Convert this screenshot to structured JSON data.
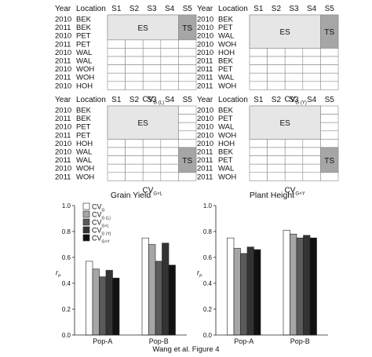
{
  "panels": [
    {
      "cv_main": "CV",
      "cv_sub": "G (L)",
      "year_header": "Year",
      "location_header": "Location",
      "col_headers": [
        "S1",
        "S2",
        "S3",
        "S4",
        "S5"
      ],
      "rows": [
        {
          "year": "2010",
          "location": "BEK"
        },
        {
          "year": "2011",
          "location": "BEK"
        },
        {
          "year": "2010",
          "location": "PET"
        },
        {
          "year": "2011",
          "location": "PET"
        },
        {
          "year": "2010",
          "location": "WAL"
        },
        {
          "year": "2011",
          "location": "WAL"
        },
        {
          "year": "2010",
          "location": "WOH"
        },
        {
          "year": "2011",
          "location": "WOH"
        },
        {
          "year": "2010",
          "location": "HOH"
        }
      ],
      "es": {
        "label": "ES",
        "row_start": 0,
        "row_end": 3,
        "col_start": 0,
        "col_end": 4
      },
      "ts": {
        "label": "TS",
        "row_start": 0,
        "row_end": 3,
        "col_start": 4,
        "col_end": 5
      }
    },
    {
      "cv_main": "CV",
      "cv_sub": "G (Y)",
      "year_header": "Year",
      "location_header": "Location",
      "col_headers": [
        "S1",
        "S2",
        "S3",
        "S4",
        "S5"
      ],
      "rows": [
        {
          "year": "2010",
          "location": "BEK"
        },
        {
          "year": "2010",
          "location": "PET"
        },
        {
          "year": "2010",
          "location": "WAL"
        },
        {
          "year": "2010",
          "location": "WOH"
        },
        {
          "year": "2010",
          "location": "HOH"
        },
        {
          "year": "2011",
          "location": "BEK"
        },
        {
          "year": "2011",
          "location": "PET"
        },
        {
          "year": "2011",
          "location": "WAL"
        },
        {
          "year": "2011",
          "location": "WOH"
        }
      ],
      "es": {
        "label": "ES",
        "row_start": 0,
        "row_end": 4,
        "col_start": 0,
        "col_end": 4
      },
      "ts": {
        "label": "TS",
        "row_start": 0,
        "row_end": 4,
        "col_start": 4,
        "col_end": 5
      }
    },
    {
      "cv_main": "CV",
      "cv_sub": "G×L",
      "year_header": "Year",
      "location_header": "Location",
      "col_headers": [
        "S1",
        "S2",
        "S3",
        "S4",
        "S5"
      ],
      "rows": [
        {
          "year": "2010",
          "location": "BEK"
        },
        {
          "year": "2011",
          "location": "BEK"
        },
        {
          "year": "2010",
          "location": "PET"
        },
        {
          "year": "2011",
          "location": "PET"
        },
        {
          "year": "2010",
          "location": "HOH"
        },
        {
          "year": "2010",
          "location": "WAL"
        },
        {
          "year": "2011",
          "location": "WAL"
        },
        {
          "year": "2010",
          "location": "WOH"
        },
        {
          "year": "2011",
          "location": "WOH"
        }
      ],
      "es": {
        "label": "ES",
        "row_start": 0,
        "row_end": 4,
        "col_start": 0,
        "col_end": 4
      },
      "ts": {
        "label": "TS",
        "row_start": 5,
        "row_end": 8,
        "col_start": 4,
        "col_end": 5
      }
    },
    {
      "cv_main": "CV",
      "cv_sub": "G×Y",
      "year_header": "Year",
      "location_header": "Location",
      "col_headers": [
        "S1",
        "S2",
        "S3",
        "S4",
        "S5"
      ],
      "rows": [
        {
          "year": "2010",
          "location": "BEK"
        },
        {
          "year": "2010",
          "location": "PET"
        },
        {
          "year": "2010",
          "location": "WAL"
        },
        {
          "year": "2010",
          "location": "WOH"
        },
        {
          "year": "2010",
          "location": "HOH"
        },
        {
          "year": "2011",
          "location": "BEK"
        },
        {
          "year": "2011",
          "location": "PET"
        },
        {
          "year": "2011",
          "location": "WAL"
        },
        {
          "year": "2011",
          "location": "WOH"
        }
      ],
      "es": {
        "label": "ES",
        "row_start": 0,
        "row_end": 4,
        "col_start": 0,
        "col_end": 4
      },
      "ts": {
        "label": "TS",
        "row_start": 5,
        "row_end": 8,
        "col_start": 4,
        "col_end": 5
      }
    }
  ],
  "legend": [
    {
      "main": "CV",
      "sub": "G",
      "color": "#ffffff"
    },
    {
      "main": "CV",
      "sub": "G (L)",
      "color": "#a6a6a6"
    },
    {
      "main": "CV",
      "sub": "G×L",
      "color": "#5a5a5a"
    },
    {
      "main": "CV",
      "sub": "G (Y)",
      "color": "#333333"
    },
    {
      "main": "CV",
      "sub": "G×Y",
      "color": "#111111"
    }
  ],
  "colors": {
    "es_fill": "#e6e6e6",
    "ts_fill": "#a6a6a6",
    "grid_line": "#888888"
  },
  "chart_data": [
    {
      "type": "bar",
      "title": "Grain Yield",
      "ylabel": "r",
      "ylabel_sub": "P",
      "ylim": [
        0,
        1
      ],
      "yticks": [
        "0.0",
        "0.2",
        "0.4",
        "0.6",
        "0.8",
        "1.0"
      ],
      "categories": [
        "Pop-A",
        "Pop-B"
      ],
      "series": [
        {
          "name": "CV G",
          "values": [
            0.57,
            0.75
          ]
        },
        {
          "name": "CV G (L)",
          "values": [
            0.51,
            0.7
          ]
        },
        {
          "name": "CV G×L",
          "values": [
            0.45,
            0.57
          ]
        },
        {
          "name": "CV G (Y)",
          "values": [
            0.5,
            0.71
          ]
        },
        {
          "name": "CV G×Y",
          "values": [
            0.44,
            0.54
          ]
        }
      ],
      "legend_position": "top-left"
    },
    {
      "type": "bar",
      "title": "Plant Height",
      "ylabel": "r",
      "ylabel_sub": "P",
      "ylim": [
        0,
        1
      ],
      "yticks": [
        "0.0",
        "0.2",
        "0.4",
        "0.6",
        "0.8",
        "1.0"
      ],
      "categories": [
        "Pop-A",
        "Pop-B"
      ],
      "series": [
        {
          "name": "CV G",
          "values": [
            0.75,
            0.81
          ]
        },
        {
          "name": "CV G (L)",
          "values": [
            0.67,
            0.78
          ]
        },
        {
          "name": "CV G×L",
          "values": [
            0.63,
            0.75
          ]
        },
        {
          "name": "CV G (Y)",
          "values": [
            0.68,
            0.77
          ]
        },
        {
          "name": "CV G×Y",
          "values": [
            0.66,
            0.75
          ]
        }
      ]
    }
  ],
  "caption": "Wang et al. Figure 4"
}
